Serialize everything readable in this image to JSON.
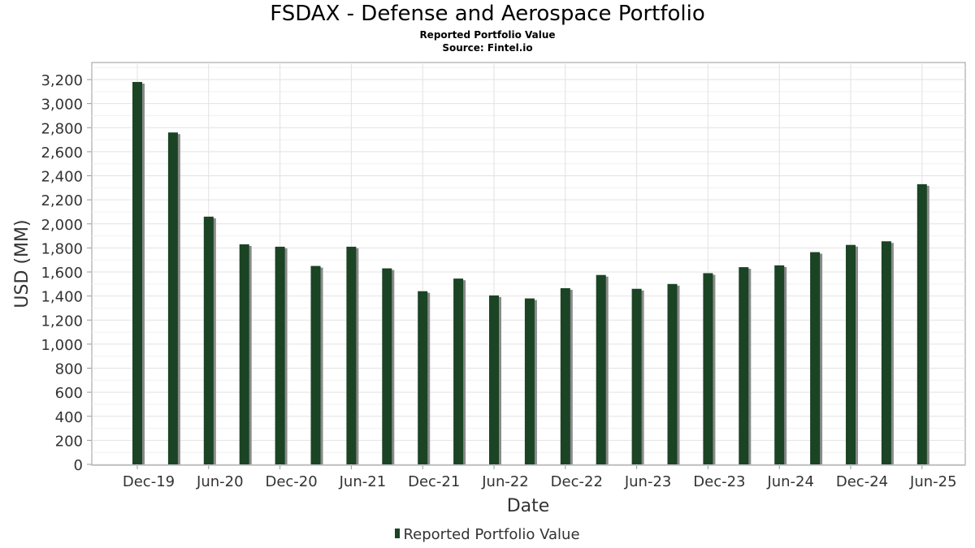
{
  "title": "FSDAX - Defense and Aerospace Portfolio",
  "subtitle": "Reported Portfolio Value",
  "source": "Source: Fintel.io",
  "colors": {
    "bar": "#1a4424",
    "bar_shadow": "#8a8a8a",
    "grid": "#e2e2e2",
    "axis": "#999999"
  },
  "chart_data": {
    "type": "bar",
    "title": "FSDAX - Defense and Aerospace Portfolio",
    "subtitle": "Reported Portfolio Value",
    "xlabel": "Date",
    "ylabel": "USD (MM)",
    "ylim": [
      0,
      3300
    ],
    "yticks": [
      0,
      200,
      400,
      600,
      800,
      1000,
      1200,
      1400,
      1600,
      1800,
      2000,
      2200,
      2400,
      2600,
      2800,
      3000,
      3200
    ],
    "ytick_labels": [
      "0",
      "200",
      "400",
      "600",
      "800",
      "1,000",
      "1,200",
      "1,400",
      "1,600",
      "1,800",
      "2,000",
      "2,200",
      "2,400",
      "2,600",
      "2,800",
      "3,000",
      "3,200"
    ],
    "xtick_labels": [
      "Dec-19",
      "Jun-20",
      "Dec-20",
      "Jun-21",
      "Dec-21",
      "Jun-22",
      "Dec-22",
      "Jun-23",
      "Dec-23",
      "Jun-24",
      "Dec-24",
      "Jun-25"
    ],
    "grid": true,
    "legend_position": "bottom",
    "series": [
      {
        "name": "Reported Portfolio Value",
        "x": [
          "2019-12",
          "2020-03",
          "2020-06",
          "2020-09",
          "2020-12",
          "2021-03",
          "2021-06",
          "2021-09",
          "2021-12",
          "2022-03",
          "2022-06",
          "2022-09",
          "2022-12",
          "2023-03",
          "2023-06",
          "2023-09",
          "2023-12",
          "2024-03",
          "2024-06",
          "2024-09",
          "2024-12",
          "2025-03",
          "2025-06"
        ],
        "values": [
          3180,
          2760,
          2060,
          1830,
          1810,
          1650,
          1810,
          1630,
          1440,
          1545,
          1405,
          1380,
          1465,
          1575,
          1460,
          1500,
          1590,
          1640,
          1655,
          1765,
          1825,
          1855,
          2330
        ]
      }
    ]
  }
}
